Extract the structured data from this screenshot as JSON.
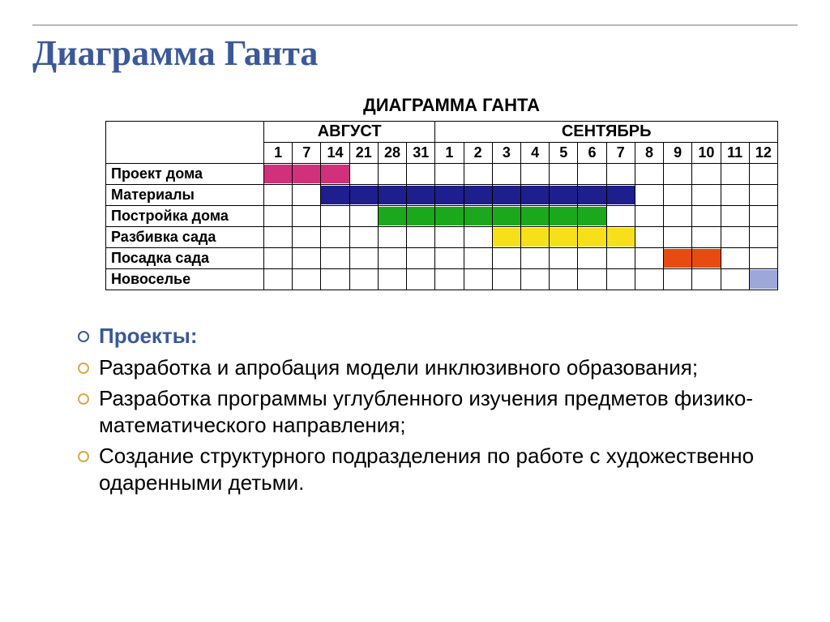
{
  "page": {
    "main_title": "Диаграмма Ганта",
    "title_color": "#3b5998",
    "rule_color": "#b8b8c0",
    "background_color": "#ffffff"
  },
  "chart": {
    "type": "gantt",
    "title": "ДИАГРАММА ГАНТА",
    "title_fontsize": 22,
    "border_color": "#000000",
    "months": [
      {
        "label": "АВГУСТ",
        "span": 6,
        "days": [
          "1",
          "7",
          "14",
          "21",
          "28",
          "31"
        ]
      },
      {
        "label": "СЕНТЯБРЬ",
        "span": 12,
        "days": [
          "1",
          "2",
          "3",
          "4",
          "5",
          "6",
          "7",
          "8",
          "9",
          "10",
          "11",
          "12"
        ]
      }
    ],
    "total_cols": 18,
    "tasks": [
      {
        "label": "Проект дома",
        "start": 0,
        "span": 3,
        "color": "#d1317a"
      },
      {
        "label": "Материалы",
        "start": 2,
        "span": 11,
        "color": "#1e1e8c"
      },
      {
        "label": "Постройка дома",
        "start": 4,
        "span": 8,
        "color": "#1ca81c"
      },
      {
        "label": "Разбивка сада",
        "start": 8,
        "span": 5,
        "color": "#f7e019"
      },
      {
        "label": "Посадка сада",
        "start": 14,
        "span": 2,
        "color": "#e84b0f"
      },
      {
        "label": "Новоселье",
        "start": 17,
        "span": 1,
        "color": "#9da7d9"
      }
    ]
  },
  "bullets": {
    "head_label": "Проекты:",
    "head_color": "#3b5998",
    "marker_color": "#d9a84e",
    "text_color": "#000000",
    "fontsize": 26,
    "items": [
      "Разработка и апробация модели инклюзивного образования;",
      "Разработка программы углубленного изучения предметов физико-математического направления;",
      "Создание структурного подразделения по работе с художественно одаренными детьми."
    ]
  }
}
